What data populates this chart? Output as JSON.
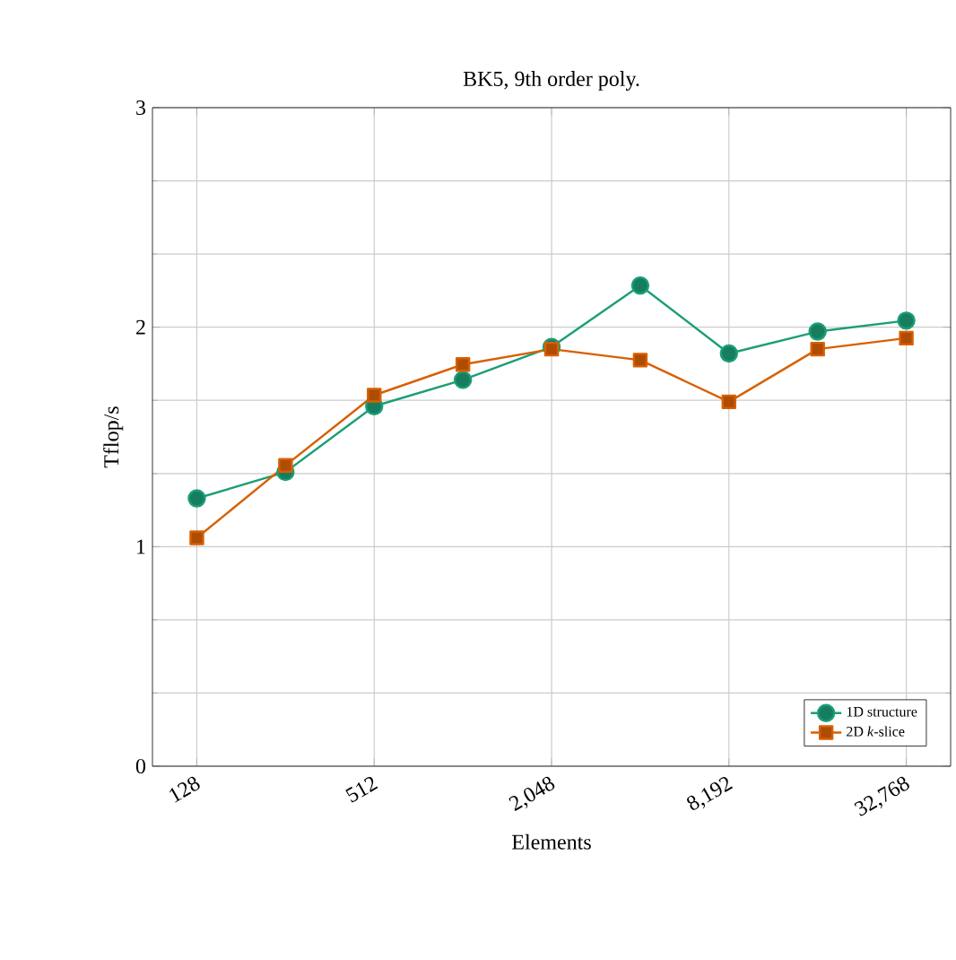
{
  "chart_data": {
    "type": "line",
    "title": "BK5, 9th order poly.",
    "xlabel": "Elements",
    "ylabel": "Tflop/s",
    "x": [
      128,
      256,
      512,
      1024,
      2048,
      4096,
      8192,
      16384,
      32768
    ],
    "series": [
      {
        "name": "1D structure",
        "color": "#1b9e77",
        "marker": "circle",
        "values": [
          1.22,
          1.34,
          1.64,
          1.76,
          1.91,
          2.19,
          1.88,
          1.98,
          2.03
        ]
      },
      {
        "name": "2D *k*-slice",
        "color": "#d95f02",
        "marker": "square",
        "values": [
          1.04,
          1.37,
          1.69,
          1.83,
          1.9,
          1.85,
          1.66,
          1.9,
          1.95
        ]
      }
    ],
    "log": "x",
    "xlim": [
      90.5,
      46341
    ],
    "ylim": [
      0,
      3
    ],
    "xticks": [
      {
        "value": 128,
        "label": "128"
      },
      {
        "value": 512,
        "label": "512"
      },
      {
        "value": 2048,
        "label": "2,048"
      },
      {
        "value": 8192,
        "label": "8,192"
      },
      {
        "value": 32768,
        "label": "32,768"
      }
    ],
    "yticks": [
      0,
      1,
      2,
      3
    ],
    "grid": true,
    "legend": "bottom right",
    "line_style": "solid"
  }
}
